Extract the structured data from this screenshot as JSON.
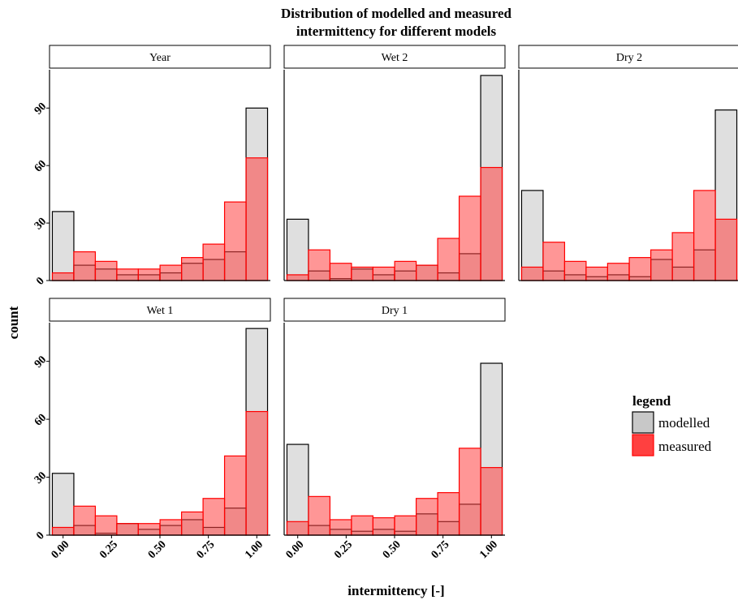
{
  "chart_data": {
    "type": "bar",
    "title_lines": [
      "Distribution of modelled and measured",
      "intermittency for different models"
    ],
    "xlabel": "intermittency [-]",
    "ylabel": "count",
    "xlim": [
      -0.07,
      1.07
    ],
    "ylim": [
      0,
      110
    ],
    "x_ticks": [
      "0.00",
      "0.25",
      "0.50",
      "0.75",
      "1.00"
    ],
    "y_ticks": [
      "0",
      "30",
      "60",
      "90"
    ],
    "bin_centers": [
      0.0,
      0.111,
      0.222,
      0.333,
      0.444,
      0.556,
      0.667,
      0.778,
      0.889,
      1.0
    ],
    "colors": {
      "modelled_fill": "#bfbfbf",
      "measured_fill": "#ff4040",
      "measured_stroke": "#ff0000",
      "modelled_stroke": "#000000"
    },
    "legend": {
      "title": "legend",
      "entries": [
        {
          "label": "modelled",
          "color": "#c8c8c8",
          "border": "#000000"
        },
        {
          "label": "measured",
          "color": "#ff4040",
          "border": "#ff0000"
        }
      ]
    },
    "panels": [
      {
        "name": "Year",
        "series": [
          {
            "name": "modelled",
            "values": [
              36,
              8,
              6,
              3,
              3,
              4,
              9,
              11,
              15,
              90
            ]
          },
          {
            "name": "measured",
            "values": [
              4,
              15,
              10,
              6,
              6,
              8,
              12,
              19,
              41,
              64
            ]
          }
        ]
      },
      {
        "name": "Wet 2",
        "series": [
          {
            "name": "modelled",
            "values": [
              32,
              5,
              1,
              6,
              3,
              5,
              8,
              4,
              14,
              107
            ]
          },
          {
            "name": "measured",
            "values": [
              3,
              16,
              9,
              7,
              7,
              10,
              8,
              22,
              44,
              59
            ]
          }
        ]
      },
      {
        "name": "Dry 2",
        "series": [
          {
            "name": "modelled",
            "values": [
              47,
              5,
              3,
              2,
              3,
              2,
              11,
              7,
              16,
              89
            ]
          },
          {
            "name": "measured",
            "values": [
              7,
              20,
              10,
              7,
              9,
              12,
              16,
              25,
              47,
              32
            ]
          }
        ]
      },
      {
        "name": "Wet 1",
        "series": [
          {
            "name": "modelled",
            "values": [
              32,
              5,
              1,
              6,
              3,
              5,
              8,
              4,
              14,
              107
            ]
          },
          {
            "name": "measured",
            "values": [
              4,
              15,
              10,
              6,
              6,
              8,
              12,
              19,
              41,
              64
            ]
          }
        ]
      },
      {
        "name": "Dry 1",
        "series": [
          {
            "name": "modelled",
            "values": [
              47,
              5,
              3,
              2,
              3,
              2,
              11,
              7,
              16,
              89
            ]
          },
          {
            "name": "measured",
            "values": [
              7,
              20,
              8,
              10,
              9,
              10,
              19,
              22,
              45,
              35
            ]
          }
        ]
      }
    ]
  }
}
